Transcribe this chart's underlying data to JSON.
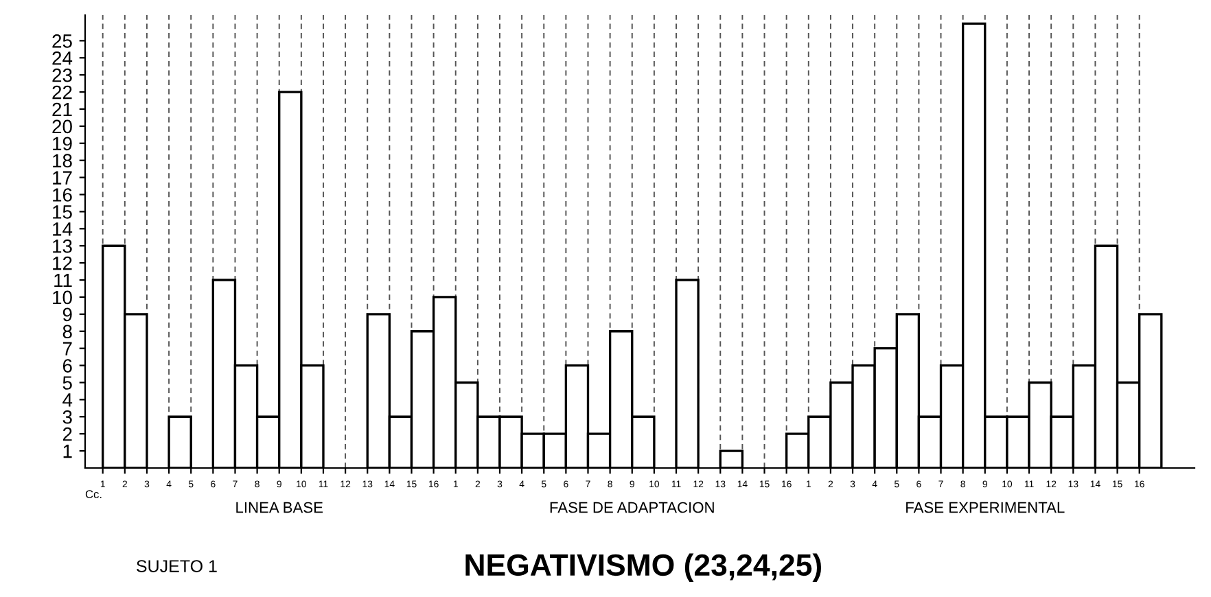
{
  "chart_data": {
    "type": "bar",
    "title": "NEGATIVISMO (23,24,25)",
    "categories": [
      "1",
      "2",
      "3",
      "4",
      "5",
      "6",
      "7",
      "8",
      "9",
      "10",
      "11",
      "12",
      "13",
      "14",
      "15",
      "16",
      "1",
      "2",
      "3",
      "4",
      "5",
      "6",
      "7",
      "8",
      "9",
      "10",
      "11",
      "12",
      "13",
      "14",
      "15",
      "16",
      "1",
      "2",
      "3",
      "4",
      "5",
      "6",
      "7",
      "8",
      "9",
      "10",
      "11",
      "12",
      "13",
      "14",
      "15",
      "16"
    ],
    "values": [
      13,
      9,
      0,
      3,
      0,
      11,
      6,
      3,
      22,
      6,
      0,
      0,
      9,
      3,
      8,
      10,
      5,
      3,
      3,
      2,
      2,
      6,
      2,
      8,
      3,
      0,
      11,
      0,
      1,
      0,
      0,
      2,
      3,
      5,
      6,
      7,
      9,
      3,
      6,
      26,
      3,
      3,
      5,
      3,
      6,
      13,
      5,
      9
    ],
    "color": "#ffffff",
    "ylim": [
      0,
      26.5
    ],
    "yticks": [
      1,
      2,
      3,
      4,
      5,
      6,
      7,
      8,
      9,
      10,
      11,
      12,
      13,
      14,
      15,
      16,
      17,
      18,
      19,
      20,
      21,
      22,
      23,
      24,
      25
    ],
    "grid": "x",
    "annotations": [
      "Cc.",
      "LINEA BASE",
      "FASE DE ADAPTACION",
      "FASE EXPERIMENTAL",
      "SUJETO 1"
    ]
  }
}
